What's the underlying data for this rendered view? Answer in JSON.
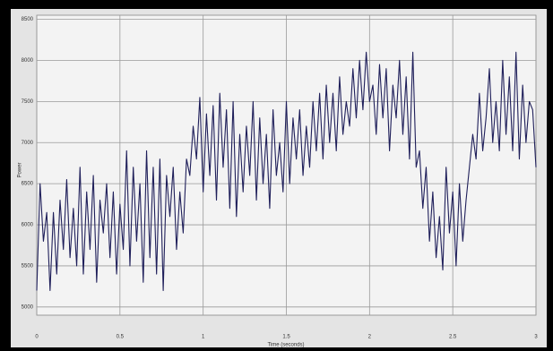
{
  "chart_data": {
    "type": "line",
    "xlabel": "Time (seconds)",
    "ylabel": "Power",
    "x": [
      0,
      0.02,
      0.04,
      0.06,
      0.08,
      0.1,
      0.12,
      0.14,
      0.16,
      0.18,
      0.2,
      0.22,
      0.24,
      0.26,
      0.28,
      0.3,
      0.32,
      0.34,
      0.36,
      0.38,
      0.4,
      0.42,
      0.44,
      0.46,
      0.48,
      0.5,
      0.52,
      0.54,
      0.56,
      0.58,
      0.6,
      0.62,
      0.64,
      0.66,
      0.68,
      0.7,
      0.72,
      0.74,
      0.76,
      0.78,
      0.8,
      0.82,
      0.84,
      0.86,
      0.88,
      0.9,
      0.92,
      0.94,
      0.96,
      0.98,
      1,
      1.02,
      1.04,
      1.06,
      1.08,
      1.1,
      1.12,
      1.14,
      1.16,
      1.18,
      1.2,
      1.22,
      1.24,
      1.26,
      1.28,
      1.3,
      1.32,
      1.34,
      1.36,
      1.38,
      1.4,
      1.42,
      1.44,
      1.46,
      1.48,
      1.5,
      1.52,
      1.54,
      1.56,
      1.58,
      1.6,
      1.62,
      1.64,
      1.66,
      1.68,
      1.7,
      1.72,
      1.74,
      1.76,
      1.78,
      1.8,
      1.82,
      1.84,
      1.86,
      1.88,
      1.9,
      1.92,
      1.94,
      1.96,
      1.98,
      2,
      2.02,
      2.04,
      2.06,
      2.08,
      2.1,
      2.12,
      2.14,
      2.16,
      2.18,
      2.2,
      2.22,
      2.24,
      2.26,
      2.28,
      2.3,
      2.32,
      2.34,
      2.36,
      2.38,
      2.4,
      2.42,
      2.44,
      2.46,
      2.48,
      2.5,
      2.52,
      2.54,
      2.56,
      2.58,
      2.6,
      2.62,
      2.64,
      2.66,
      2.68,
      2.7,
      2.72,
      2.74,
      2.76,
      2.78,
      2.8,
      2.82,
      2.84,
      2.86,
      2.88,
      2.9,
      2.92,
      2.94,
      2.96,
      2.98,
      3
    ],
    "series": [
      {
        "color": "#1f1f5a",
        "values": [
          5200,
          6500,
          5800,
          6150,
          5200,
          6150,
          5400,
          6300,
          5700,
          6550,
          5600,
          6200,
          5500,
          6700,
          5400,
          6400,
          5700,
          6600,
          5300,
          6300,
          5900,
          6500,
          5600,
          6400,
          5400,
          6250,
          5700,
          6900,
          5500,
          6700,
          5800,
          6500,
          5300,
          6900,
          5600,
          6700,
          5400,
          6800,
          5200,
          6600,
          6100,
          6700,
          5700,
          6400,
          5900,
          6800,
          6600,
          7200,
          6800,
          7550,
          6400,
          7350,
          6600,
          7450,
          6300,
          7600,
          6700,
          7400,
          6200,
          7500,
          6100,
          7100,
          6400,
          7200,
          6600,
          7500,
          6300,
          7300,
          6500,
          7100,
          6200,
          7400,
          6600,
          7000,
          6400,
          7500,
          6500,
          7300,
          6800,
          7400,
          6600,
          7200,
          6700,
          7500,
          6900,
          7600,
          6800,
          7700,
          7000,
          7600,
          6900,
          7800,
          7100,
          7500,
          7200,
          7900,
          7300,
          8000,
          7400,
          8100,
          7500,
          7700,
          7100,
          7950,
          7300,
          7900,
          6900,
          7700,
          7300,
          8000,
          7100,
          7800,
          6800,
          8100,
          6700,
          6900,
          6200,
          6700,
          5800,
          6400,
          5600,
          6100,
          5450,
          6700,
          5900,
          6400,
          5500,
          6500,
          5800,
          6300,
          6700,
          7100,
          6800,
          7600,
          6900,
          7300,
          7900,
          7000,
          7500,
          6900,
          8000,
          7100,
          7800,
          6900,
          8100,
          6800,
          7700,
          7000,
          7500,
          7400,
          6700
        ]
      }
    ],
    "xlim": [
      0,
      3
    ],
    "xticks": [
      0,
      0.5,
      1,
      1.5,
      2,
      2.5,
      3
    ],
    "ylim": [
      4900,
      8550
    ],
    "yticks": [
      5000,
      5500,
      6000,
      6500,
      7000,
      7500,
      8000,
      8500
    ],
    "grid": true
  }
}
